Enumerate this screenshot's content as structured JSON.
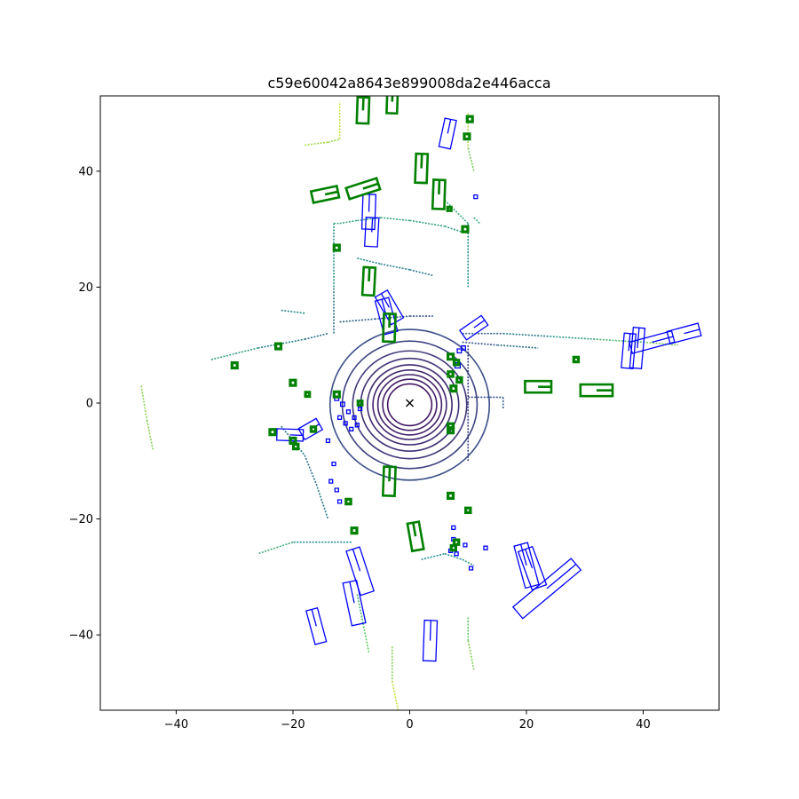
{
  "chart_data": {
    "type": "scatter",
    "title": "c59e60042a8643e899008da2e446acca",
    "xlabel": "",
    "ylabel": "",
    "xlim": [
      -53,
      53
    ],
    "ylim": [
      -53,
      53
    ],
    "x_ticks": [
      -40,
      -20,
      0,
      20,
      40
    ],
    "y_ticks": [
      -40,
      -20,
      0,
      20,
      40
    ],
    "x_tick_labels": [
      "−40",
      "−20",
      "0",
      "20",
      "40"
    ],
    "y_tick_labels": [
      "−40",
      "−20",
      "0",
      "20",
      "40"
    ],
    "grid": false,
    "ego_marker": {
      "x": 0,
      "y": 0,
      "symbol": "x"
    },
    "colors": {
      "ground_truth_boxes": "#0000ff",
      "predicted_boxes": "#008000",
      "ego": "#000000",
      "colormap": [
        "#440154",
        "#3b528b",
        "#21908d",
        "#5dc963",
        "#fde725"
      ]
    },
    "ring_radii": [
      3.6,
      4.4,
      5.2,
      6.0,
      6.9,
      8.0,
      9.3,
      11.0,
      13.0
    ],
    "lidar_segments": [
      {
        "points": [
          [
            -34,
            7.5
          ],
          [
            -26,
            9.5
          ],
          [
            -18,
            11
          ],
          [
            -14,
            12
          ]
        ]
      },
      {
        "points": [
          [
            -13,
            12
          ],
          [
            -13,
            20
          ],
          [
            -13,
            31
          ]
        ]
      },
      {
        "points": [
          [
            -13,
            31
          ],
          [
            -12,
            31
          ],
          [
            -9,
            31.5
          ],
          [
            -5,
            32
          ],
          [
            0,
            31.5
          ],
          [
            6,
            30.5
          ],
          [
            9,
            29.5
          ]
        ]
      },
      {
        "points": [
          [
            -22,
            16
          ],
          [
            -18,
            15.5
          ]
        ]
      },
      {
        "points": [
          [
            -9,
            25
          ],
          [
            -5,
            24
          ],
          [
            0,
            23
          ],
          [
            4,
            22
          ]
        ]
      },
      {
        "points": [
          [
            -12,
            14
          ],
          [
            -6,
            14.5
          ],
          [
            0,
            15
          ],
          [
            4,
            15
          ]
        ]
      },
      {
        "points": [
          [
            9,
            12
          ],
          [
            16,
            12
          ],
          [
            24,
            11.5
          ],
          [
            32,
            11
          ],
          [
            40,
            10.5
          ],
          [
            46,
            10
          ]
        ]
      },
      {
        "points": [
          [
            9,
            10.5
          ],
          [
            15,
            10
          ],
          [
            22,
            9.5
          ]
        ]
      },
      {
        "points": [
          [
            -18,
            44.5
          ],
          [
            -14,
            45
          ],
          [
            -12,
            45.5
          ]
        ]
      },
      {
        "points": [
          [
            -12,
            45.5
          ],
          [
            -12,
            52
          ]
        ]
      },
      {
        "points": [
          [
            -46,
            3
          ],
          [
            -45,
            -3
          ],
          [
            -44,
            -8
          ]
        ]
      },
      {
        "points": [
          [
            -20,
            -24
          ],
          [
            -26,
            -26
          ]
        ]
      },
      {
        "points": [
          [
            -10,
            -24
          ],
          [
            -20,
            -24
          ]
        ]
      },
      {
        "points": [
          [
            10,
            -10
          ],
          [
            10,
            0
          ],
          [
            10,
            10
          ]
        ]
      },
      {
        "points": [
          [
            10,
            1
          ],
          [
            16,
            1
          ],
          [
            16,
            -1
          ]
        ]
      },
      {
        "points": [
          [
            2,
            -27
          ],
          [
            6,
            -26
          ],
          [
            9,
            -27
          ],
          [
            11,
            -28
          ]
        ]
      },
      {
        "points": [
          [
            6,
            35
          ],
          [
            10,
            31
          ],
          [
            10,
            20
          ]
        ]
      },
      {
        "points": [
          [
            11,
            32
          ],
          [
            12,
            31
          ]
        ]
      },
      {
        "points": [
          [
            -22,
            -4
          ],
          [
            -18,
            -9
          ],
          [
            -16,
            -14
          ],
          [
            -14,
            -20
          ]
        ]
      },
      {
        "points": [
          [
            -9,
            -33
          ],
          [
            -8,
            -38
          ],
          [
            -7,
            -43
          ]
        ]
      },
      {
        "points": [
          [
            -3,
            -42
          ],
          [
            -3,
            -48
          ],
          [
            -2,
            -53
          ]
        ]
      },
      {
        "points": [
          [
            10,
            -37
          ],
          [
            10,
            -41
          ],
          [
            11,
            -46
          ]
        ]
      },
      {
        "points": [
          [
            10,
            50
          ],
          [
            10,
            44
          ],
          [
            11,
            40
          ]
        ]
      }
    ],
    "ground_truth_boxes": [
      {
        "x": 6.5,
        "y": 46.5,
        "w": 2.0,
        "l": 5.0,
        "yaw": 12
      },
      {
        "x": -7,
        "y": 33,
        "w": 2.2,
        "l": 6.0,
        "yaw": 2
      },
      {
        "x": -6.5,
        "y": 29.5,
        "w": 2.2,
        "l": 5.0,
        "yaw": 3
      },
      {
        "x": -4,
        "y": 15,
        "w": 2.4,
        "l": 6.0,
        "yaw": -15
      },
      {
        "x": -3.5,
        "y": 16.5,
        "w": 2.4,
        "l": 5.5,
        "yaw": -30
      },
      {
        "x": 11,
        "y": 13,
        "w": 2.0,
        "l": 4.5,
        "yaw": 55
      },
      {
        "x": 37.5,
        "y": 9,
        "w": 2.0,
        "l": 6.0,
        "yaw": 5
      },
      {
        "x": 39,
        "y": 9.5,
        "w": 2.0,
        "l": 7.0,
        "yaw": 5
      },
      {
        "x": 41.5,
        "y": 10.5,
        "w": 2.0,
        "l": 7.5,
        "yaw": 75
      },
      {
        "x": 47,
        "y": 12,
        "w": 2.2,
        "l": 5.5,
        "yaw": 75
      },
      {
        "x": -20.5,
        "y": -5.5,
        "w": 2.0,
        "l": 4.5,
        "yaw": 92
      },
      {
        "x": -17,
        "y": -4.5,
        "w": 2.2,
        "l": 3.5,
        "yaw": 60
      },
      {
        "x": -3.5,
        "y": -13.5,
        "w": 2.0,
        "l": 5.0,
        "yaw": 2
      },
      {
        "x": 3.5,
        "y": -41,
        "w": 2.2,
        "l": 7.0,
        "yaw": 2
      },
      {
        "x": -8.5,
        "y": -29,
        "w": 2.4,
        "l": 8.0,
        "yaw": -18
      },
      {
        "x": -9.5,
        "y": -34.5,
        "w": 2.4,
        "l": 7.5,
        "yaw": -12
      },
      {
        "x": -16,
        "y": -38.5,
        "w": 2.0,
        "l": 6.0,
        "yaw": -15
      },
      {
        "x": 20,
        "y": -28,
        "w": 2.4,
        "l": 7.5,
        "yaw": -15
      },
      {
        "x": 21,
        "y": -28.5,
        "w": 2.6,
        "l": 7.0,
        "yaw": -20
      },
      {
        "x": 23.5,
        "y": -32,
        "w": 2.6,
        "l": 13.0,
        "yaw": 50
      },
      {
        "x": 11.3,
        "y": 35.6,
        "w": 0.6,
        "l": 0.6,
        "yaw": 0
      },
      {
        "x": 8.5,
        "y": 9,
        "w": 0.7,
        "l": 0.7,
        "yaw": 0
      },
      {
        "x": 9.2,
        "y": 9.5,
        "w": 0.7,
        "l": 0.7,
        "yaw": 0
      },
      {
        "x": 8.2,
        "y": 6.5,
        "w": 0.9,
        "l": 0.9,
        "yaw": 0
      },
      {
        "x": -12.5,
        "y": 0.8,
        "w": 0.7,
        "l": 0.7,
        "yaw": 0
      },
      {
        "x": -11.5,
        "y": -0.2,
        "w": 0.7,
        "l": 0.7,
        "yaw": 0
      },
      {
        "x": -12,
        "y": -2.5,
        "w": 0.6,
        "l": 0.6,
        "yaw": 0
      },
      {
        "x": -11,
        "y": -3.5,
        "w": 0.6,
        "l": 0.6,
        "yaw": 0
      },
      {
        "x": -10,
        "y": -4.5,
        "w": 0.6,
        "l": 0.6,
        "yaw": 0
      },
      {
        "x": -9.5,
        "y": -2.5,
        "w": 0.6,
        "l": 0.6,
        "yaw": 0
      },
      {
        "x": -9,
        "y": -3.8,
        "w": 0.6,
        "l": 0.6,
        "yaw": 0
      },
      {
        "x": -10.5,
        "y": -1.5,
        "w": 0.6,
        "l": 0.6,
        "yaw": 0
      },
      {
        "x": -8.5,
        "y": -1,
        "w": 0.6,
        "l": 0.6,
        "yaw": 0
      },
      {
        "x": -14,
        "y": -6.5,
        "w": 0.6,
        "l": 0.6,
        "yaw": 0
      },
      {
        "x": -13,
        "y": -10.5,
        "w": 0.6,
        "l": 0.6,
        "yaw": 0
      },
      {
        "x": -13.5,
        "y": -13.5,
        "w": 0.6,
        "l": 0.6,
        "yaw": 0
      },
      {
        "x": -12.5,
        "y": -15,
        "w": 0.6,
        "l": 0.6,
        "yaw": 0
      },
      {
        "x": -12,
        "y": -17,
        "w": 0.6,
        "l": 0.6,
        "yaw": 0
      },
      {
        "x": 7.5,
        "y": -23.5,
        "w": 0.6,
        "l": 0.6,
        "yaw": 0
      },
      {
        "x": 7,
        "y": -25.5,
        "w": 0.6,
        "l": 0.6,
        "yaw": 0
      },
      {
        "x": 8,
        "y": -26,
        "w": 0.6,
        "l": 0.6,
        "yaw": 0
      },
      {
        "x": 7.5,
        "y": -21.5,
        "w": 0.6,
        "l": 0.6,
        "yaw": 0
      },
      {
        "x": 9.5,
        "y": -24.5,
        "w": 0.6,
        "l": 0.6,
        "yaw": 0
      },
      {
        "x": 10.5,
        "y": -28.5,
        "w": 0.6,
        "l": 0.6,
        "yaw": 0
      },
      {
        "x": 13,
        "y": -25,
        "w": 0.6,
        "l": 0.6,
        "yaw": 0
      }
    ],
    "predicted_boxes": [
      {
        "x": -8,
        "y": 50.5,
        "w": 2.0,
        "l": 4.5,
        "yaw": 2
      },
      {
        "x": -3,
        "y": 52,
        "w": 1.8,
        "l": 4.0,
        "yaw": 2
      },
      {
        "x": 2,
        "y": 40.5,
        "w": 2.0,
        "l": 5.0,
        "yaw": 2
      },
      {
        "x": 5,
        "y": 36,
        "w": 2.0,
        "l": 5.0,
        "yaw": 2
      },
      {
        "x": -14.5,
        "y": 36,
        "w": 2.0,
        "l": 4.5,
        "yaw": 78
      },
      {
        "x": -8,
        "y": 37,
        "w": 2.0,
        "l": 5.5,
        "yaw": 72
      },
      {
        "x": -7,
        "y": 21,
        "w": 2.0,
        "l": 4.8,
        "yaw": 3
      },
      {
        "x": -3.5,
        "y": 13,
        "w": 2.0,
        "l": 4.8,
        "yaw": 2
      },
      {
        "x": 22,
        "y": 2.8,
        "w": 2.0,
        "l": 4.5,
        "yaw": 90
      },
      {
        "x": 32,
        "y": 2.2,
        "w": 2.0,
        "l": 5.5,
        "yaw": 90
      },
      {
        "x": -3.5,
        "y": -13.5,
        "w": 2.0,
        "l": 5.0,
        "yaw": 2
      },
      {
        "x": 1,
        "y": -23,
        "w": 2.0,
        "l": 4.8,
        "yaw": -10
      },
      {
        "x": 10.3,
        "y": 49,
        "w": 0.9,
        "l": 0.9,
        "yaw": 0
      },
      {
        "x": 9.8,
        "y": 46,
        "w": 0.9,
        "l": 0.9,
        "yaw": 0
      },
      {
        "x": 6.8,
        "y": 33.5,
        "w": 0.6,
        "l": 0.6,
        "yaw": 0
      },
      {
        "x": 9.5,
        "y": 30,
        "w": 0.9,
        "l": 0.9,
        "yaw": 0
      },
      {
        "x": -12.5,
        "y": 26.8,
        "w": 0.9,
        "l": 0.9,
        "yaw": 0
      },
      {
        "x": -30,
        "y": 6.5,
        "w": 0.9,
        "l": 0.9,
        "yaw": 0
      },
      {
        "x": -22.5,
        "y": 9.8,
        "w": 0.9,
        "l": 0.9,
        "yaw": 0
      },
      {
        "x": -20,
        "y": 3.5,
        "w": 0.9,
        "l": 0.9,
        "yaw": 0
      },
      {
        "x": -17.5,
        "y": 1.5,
        "w": 0.7,
        "l": 0.7,
        "yaw": 0
      },
      {
        "x": -12.5,
        "y": 1.5,
        "w": 0.9,
        "l": 0.9,
        "yaw": 0
      },
      {
        "x": -8.5,
        "y": 0,
        "w": 0.7,
        "l": 0.7,
        "yaw": 0
      },
      {
        "x": -23.5,
        "y": -5,
        "w": 0.9,
        "l": 0.9,
        "yaw": 0
      },
      {
        "x": -20,
        "y": -6.5,
        "w": 0.9,
        "l": 0.9,
        "yaw": 0
      },
      {
        "x": -19.5,
        "y": -7.5,
        "w": 0.8,
        "l": 0.8,
        "yaw": 0
      },
      {
        "x": -16.5,
        "y": -4.5,
        "w": 0.8,
        "l": 0.8,
        "yaw": 0
      },
      {
        "x": 7,
        "y": 8,
        "w": 0.9,
        "l": 0.9,
        "yaw": 0
      },
      {
        "x": 8,
        "y": 7,
        "w": 0.8,
        "l": 0.8,
        "yaw": 0
      },
      {
        "x": 7,
        "y": 5,
        "w": 0.8,
        "l": 0.8,
        "yaw": 0
      },
      {
        "x": 8.5,
        "y": 4,
        "w": 0.8,
        "l": 0.8,
        "yaw": 0
      },
      {
        "x": 7.5,
        "y": 2.5,
        "w": 0.9,
        "l": 0.9,
        "yaw": 0
      },
      {
        "x": 7,
        "y": -4,
        "w": 0.9,
        "l": 0.9,
        "yaw": 0
      },
      {
        "x": 7,
        "y": -4.7,
        "w": 0.9,
        "l": 0.9,
        "yaw": 0
      },
      {
        "x": 28.5,
        "y": 7.5,
        "w": 0.8,
        "l": 0.8,
        "yaw": 0
      },
      {
        "x": 7,
        "y": -16,
        "w": 0.9,
        "l": 0.9,
        "yaw": 0
      },
      {
        "x": 10,
        "y": -18.5,
        "w": 0.8,
        "l": 0.8,
        "yaw": 0
      },
      {
        "x": -10.5,
        "y": -17,
        "w": 0.8,
        "l": 0.8,
        "yaw": 0
      },
      {
        "x": -9.5,
        "y": -22,
        "w": 0.9,
        "l": 0.9,
        "yaw": 0
      },
      {
        "x": 8,
        "y": -24,
        "w": 0.8,
        "l": 0.8,
        "yaw": 0
      },
      {
        "x": 7.5,
        "y": -25,
        "w": 0.8,
        "l": 0.8,
        "yaw": 0
      }
    ]
  }
}
